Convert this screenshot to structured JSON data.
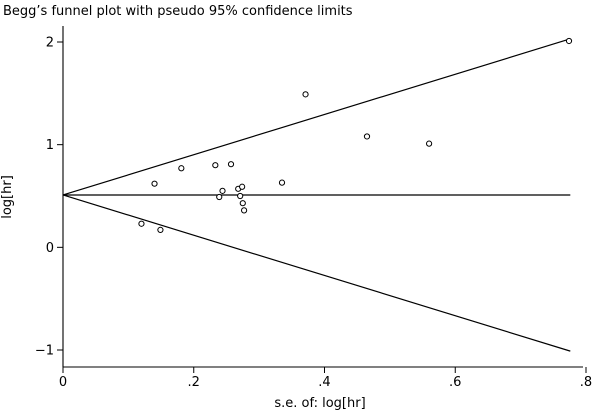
{
  "chart_data": {
    "type": "scatter",
    "title": "Begg’s funnel plot with pseudo 95% confidence limits",
    "xlabel": "s.e. of: log[hr]",
    "ylabel": "log[hr]",
    "xlim": [
      0,
      0.8
    ],
    "ylim": [
      -1,
      2
    ],
    "x_ticks": [
      0,
      0.2,
      0.4,
      0.6,
      0.8
    ],
    "x_tick_labels": [
      "0",
      ".2",
      ".4",
      ".6",
      ".8"
    ],
    "y_ticks": [
      -1,
      0,
      1,
      2
    ],
    "y_tick_labels": [
      "−1",
      "0",
      "1",
      "2"
    ],
    "grid": false,
    "legend": "none",
    "pooled_estimate": 0.51,
    "funnel_max_se": 0.776,
    "confidence_level": 0.95,
    "marker": "hollow-circle",
    "points": [
      {
        "x": 0.12,
        "y": 0.23
      },
      {
        "x": 0.14,
        "y": 0.62
      },
      {
        "x": 0.149,
        "y": 0.17
      },
      {
        "x": 0.181,
        "y": 0.77
      },
      {
        "x": 0.233,
        "y": 0.8
      },
      {
        "x": 0.239,
        "y": 0.49
      },
      {
        "x": 0.244,
        "y": 0.55
      },
      {
        "x": 0.257,
        "y": 0.81
      },
      {
        "x": 0.268,
        "y": 0.57
      },
      {
        "x": 0.271,
        "y": 0.5
      },
      {
        "x": 0.274,
        "y": 0.59
      },
      {
        "x": 0.275,
        "y": 0.43
      },
      {
        "x": 0.277,
        "y": 0.36
      },
      {
        "x": 0.335,
        "y": 0.63
      },
      {
        "x": 0.371,
        "y": 1.49
      },
      {
        "x": 0.465,
        "y": 1.08
      },
      {
        "x": 0.56,
        "y": 1.01
      },
      {
        "x": 0.774,
        "y": 2.01
      }
    ]
  }
}
